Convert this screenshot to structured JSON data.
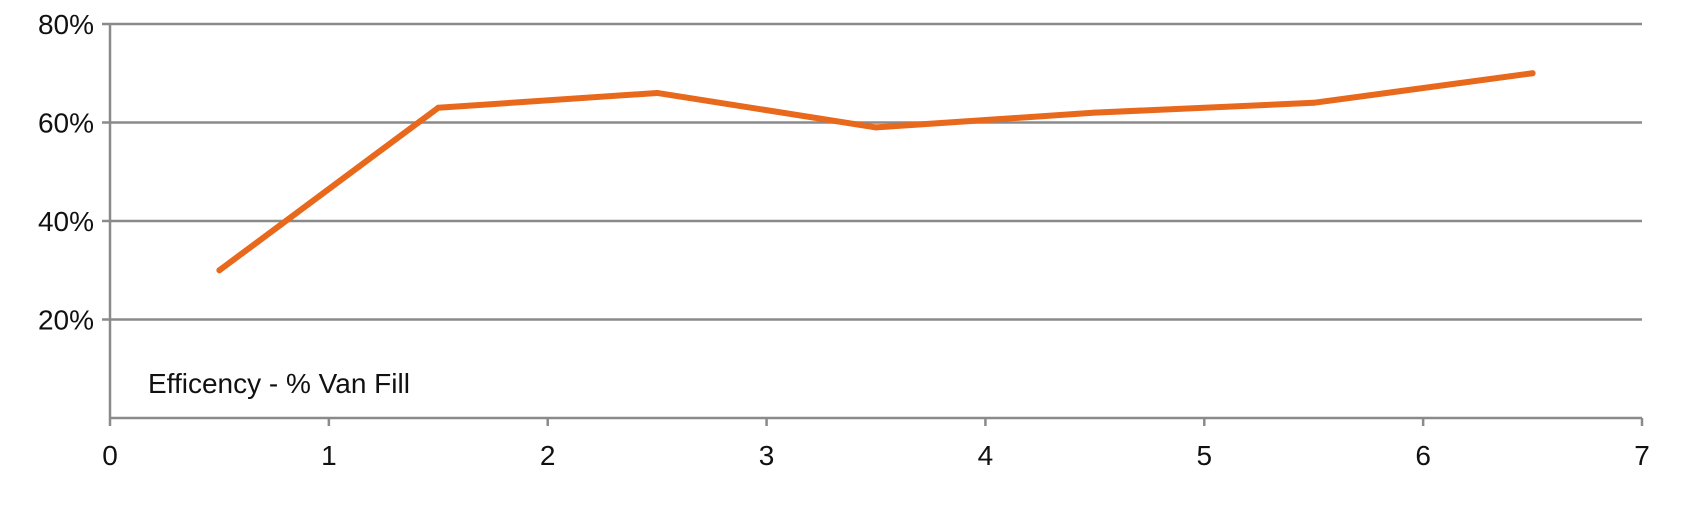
{
  "chart_data": {
    "type": "line",
    "title": "",
    "xlabel": "",
    "ylabel": "",
    "xlim": [
      0,
      7
    ],
    "ylim": [
      0,
      80
    ],
    "x_ticks": [
      "0",
      "1",
      "2",
      "3",
      "4",
      "5",
      "6",
      "7"
    ],
    "y_ticks": [
      "20%",
      "40%",
      "60%",
      "80%"
    ],
    "grid": "horizontal",
    "annotation": "Efficency - % Van Fill",
    "series": [
      {
        "color": "#e8681c",
        "x": [
          0.5,
          1.5,
          2.5,
          3.5,
          4.5,
          5.5,
          6.5
        ],
        "y": [
          30,
          63,
          66,
          59,
          62,
          64,
          70
        ]
      }
    ]
  }
}
